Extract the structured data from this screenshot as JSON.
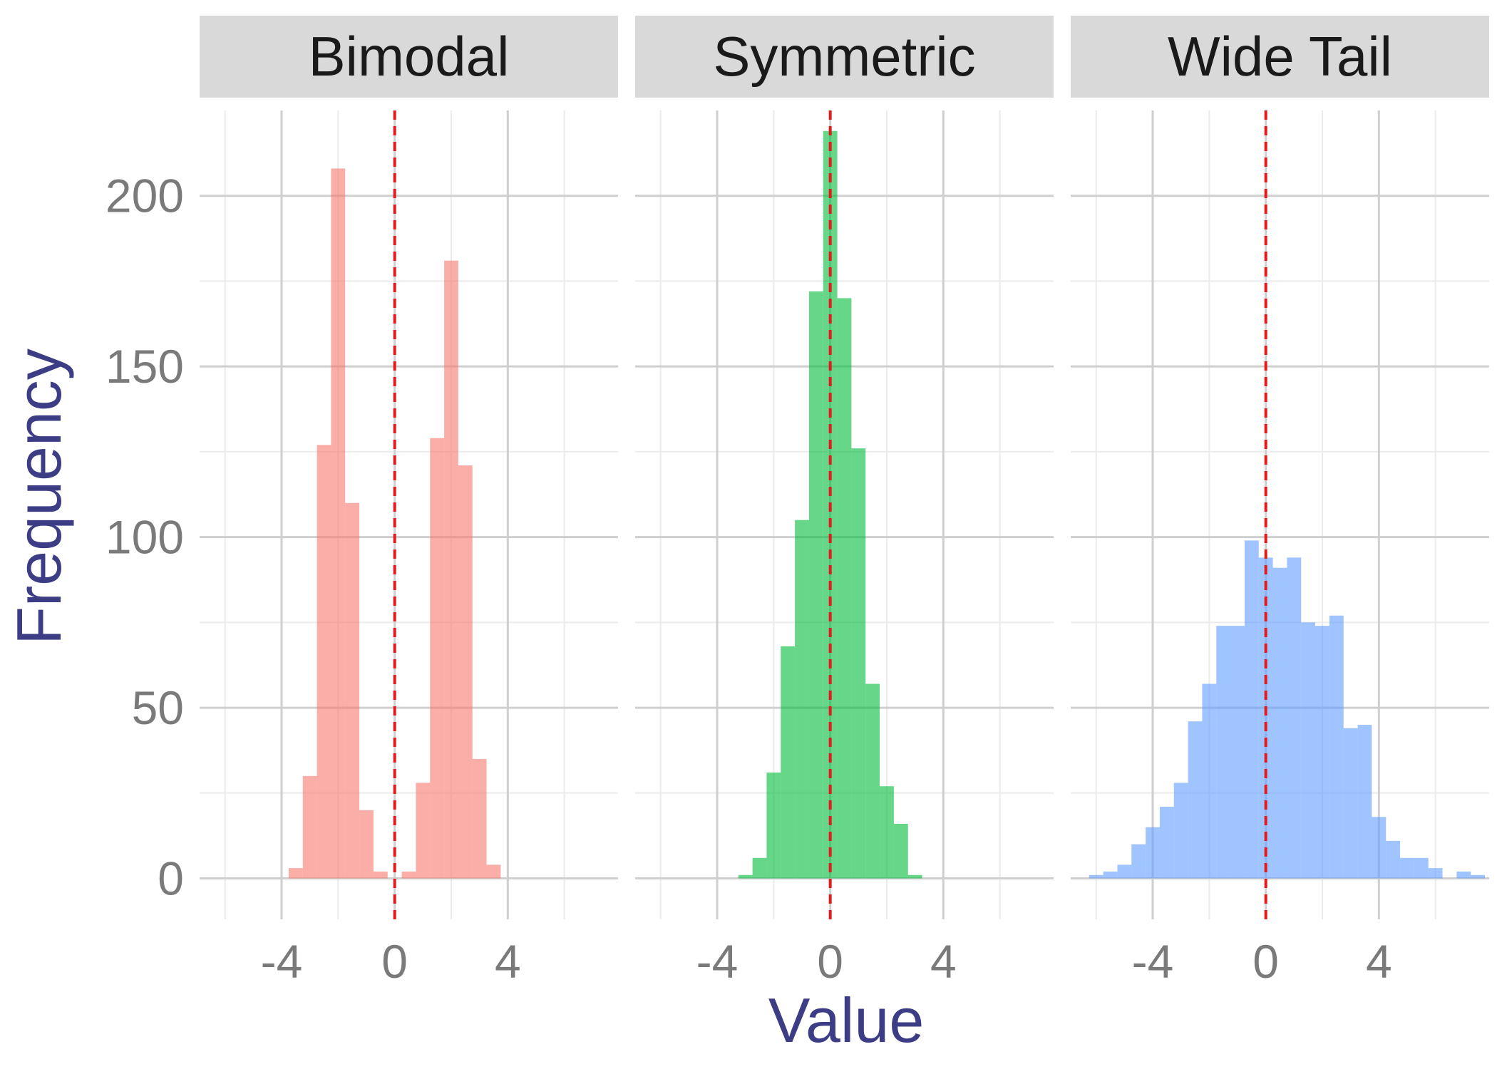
{
  "chart_data": {
    "type": "bar",
    "subtype": "faceted-histogram",
    "xlabel": "Value",
    "ylabel": "Frequency",
    "ylim": [
      -12,
      225
    ],
    "xlim": [
      -6.9,
      7.9
    ],
    "x_ticks": [
      -4,
      0,
      4
    ],
    "x_tick_labels": [
      "-4",
      "0",
      "4"
    ],
    "x_minor": [
      -6,
      -2,
      2,
      6
    ],
    "y_ticks": [
      0,
      50,
      100,
      150,
      200
    ],
    "y_tick_labels": [
      "0",
      "50",
      "100",
      "150",
      "200"
    ],
    "y_minor": [
      25,
      75,
      125,
      175
    ],
    "grid": true,
    "reference_line": {
      "x": 0,
      "color": "#e41a1c",
      "style": "dashed"
    },
    "bin_width": 0.5,
    "facets": [
      {
        "label": "Bimodal",
        "color": "#f8766d",
        "bins": [
          {
            "x0": -3.75,
            "x1": -3.25,
            "count": 3
          },
          {
            "x0": -3.25,
            "x1": -2.75,
            "count": 30
          },
          {
            "x0": -2.75,
            "x1": -2.25,
            "count": 127
          },
          {
            "x0": -2.25,
            "x1": -1.75,
            "count": 208
          },
          {
            "x0": -1.75,
            "x1": -1.25,
            "count": 110
          },
          {
            "x0": -1.25,
            "x1": -0.75,
            "count": 20
          },
          {
            "x0": -0.75,
            "x1": -0.25,
            "count": 2
          },
          {
            "x0": 0.25,
            "x1": 0.75,
            "count": 2
          },
          {
            "x0": 0.75,
            "x1": 1.25,
            "count": 28
          },
          {
            "x0": 1.25,
            "x1": 1.75,
            "count": 129
          },
          {
            "x0": 1.75,
            "x1": 2.25,
            "count": 181
          },
          {
            "x0": 2.25,
            "x1": 2.75,
            "count": 121
          },
          {
            "x0": 2.75,
            "x1": 3.25,
            "count": 35
          },
          {
            "x0": 3.25,
            "x1": 3.75,
            "count": 4
          }
        ]
      },
      {
        "label": "Symmetric",
        "color": "#00ba38",
        "bins": [
          {
            "x0": -3.25,
            "x1": -2.75,
            "count": 1
          },
          {
            "x0": -2.75,
            "x1": -2.25,
            "count": 6
          },
          {
            "x0": -2.25,
            "x1": -1.75,
            "count": 31
          },
          {
            "x0": -1.75,
            "x1": -1.25,
            "count": 68
          },
          {
            "x0": -1.25,
            "x1": -0.75,
            "count": 105
          },
          {
            "x0": -0.75,
            "x1": -0.25,
            "count": 172
          },
          {
            "x0": -0.25,
            "x1": 0.25,
            "count": 219
          },
          {
            "x0": 0.25,
            "x1": 0.75,
            "count": 170
          },
          {
            "x0": 0.75,
            "x1": 1.25,
            "count": 126
          },
          {
            "x0": 1.25,
            "x1": 1.75,
            "count": 57
          },
          {
            "x0": 1.75,
            "x1": 2.25,
            "count": 27
          },
          {
            "x0": 2.25,
            "x1": 2.75,
            "count": 16
          },
          {
            "x0": 2.75,
            "x1": 3.25,
            "count": 1
          }
        ]
      },
      {
        "label": "Wide Tail",
        "color": "#619cff",
        "bins": [
          {
            "x0": -6.25,
            "x1": -5.75,
            "count": 1
          },
          {
            "x0": -5.75,
            "x1": -5.25,
            "count": 2
          },
          {
            "x0": -5.25,
            "x1": -4.75,
            "count": 4
          },
          {
            "x0": -4.75,
            "x1": -4.25,
            "count": 10
          },
          {
            "x0": -4.25,
            "x1": -3.75,
            "count": 15
          },
          {
            "x0": -3.75,
            "x1": -3.25,
            "count": 21
          },
          {
            "x0": -3.25,
            "x1": -2.75,
            "count": 28
          },
          {
            "x0": -2.75,
            "x1": -2.25,
            "count": 46
          },
          {
            "x0": -2.25,
            "x1": -1.75,
            "count": 57
          },
          {
            "x0": -1.75,
            "x1": -1.25,
            "count": 74
          },
          {
            "x0": -1.25,
            "x1": -0.75,
            "count": 74
          },
          {
            "x0": -0.75,
            "x1": -0.25,
            "count": 99
          },
          {
            "x0": -0.25,
            "x1": 0.25,
            "count": 94
          },
          {
            "x0": 0.25,
            "x1": 0.75,
            "count": 91
          },
          {
            "x0": 0.75,
            "x1": 1.25,
            "count": 94
          },
          {
            "x0": 1.25,
            "x1": 1.75,
            "count": 75
          },
          {
            "x0": 1.75,
            "x1": 2.25,
            "count": 74
          },
          {
            "x0": 2.25,
            "x1": 2.75,
            "count": 77
          },
          {
            "x0": 2.75,
            "x1": 3.25,
            "count": 44
          },
          {
            "x0": 3.25,
            "x1": 3.75,
            "count": 45
          },
          {
            "x0": 3.75,
            "x1": 4.25,
            "count": 18
          },
          {
            "x0": 4.25,
            "x1": 4.75,
            "count": 11
          },
          {
            "x0": 4.75,
            "x1": 5.25,
            "count": 6
          },
          {
            "x0": 5.25,
            "x1": 5.75,
            "count": 6
          },
          {
            "x0": 5.75,
            "x1": 6.25,
            "count": 3
          },
          {
            "x0": 6.75,
            "x1": 7.25,
            "count": 2
          },
          {
            "x0": 7.25,
            "x1": 7.75,
            "count": 1
          }
        ]
      }
    ]
  }
}
